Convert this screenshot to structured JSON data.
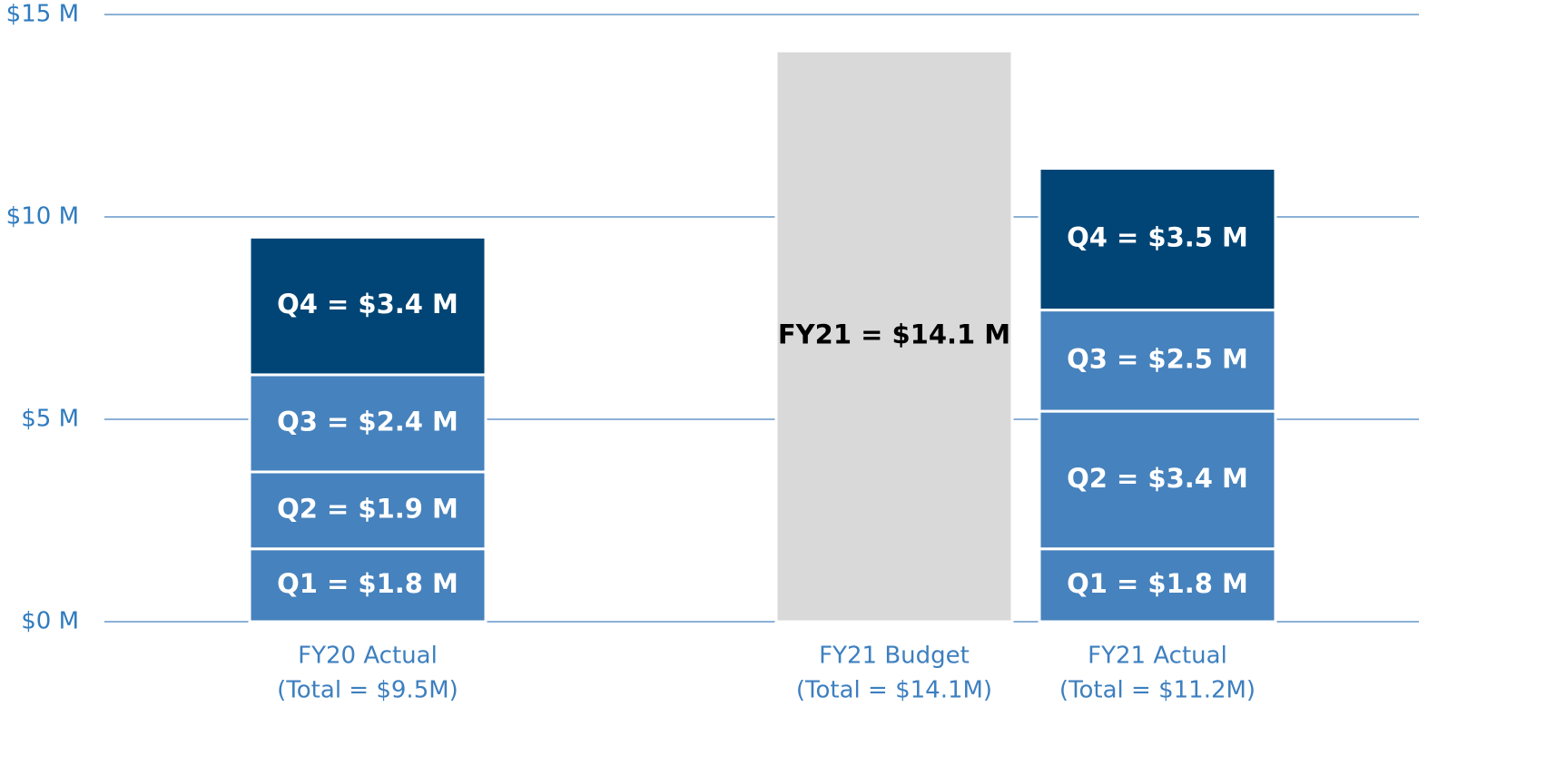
{
  "chart_data": {
    "type": "stacked_bar",
    "categories": [
      "FY20 Actual",
      "FY21 Budget",
      "FY21 Actual"
    ],
    "category_totals": [
      "(Total = $9.5M)",
      "(Total = $14.1M)",
      "(Total = $11.2M)"
    ],
    "series": [
      {
        "name": "Q1",
        "color": "#4682bd",
        "label_color": "#ffffff",
        "values": [
          1.8,
          null,
          1.8
        ],
        "value_labels": [
          "Q1 = $1.8 M",
          null,
          "Q1 = $1.8 M"
        ]
      },
      {
        "name": "Q2",
        "color": "#4682bd",
        "label_color": "#ffffff",
        "values": [
          1.9,
          null,
          3.4
        ],
        "value_labels": [
          "Q2 = $1.9 M",
          null,
          "Q2 = $3.4 M"
        ]
      },
      {
        "name": "Q3",
        "color": "#4682bd",
        "label_color": "#ffffff",
        "values": [
          2.4,
          null,
          2.5
        ],
        "value_labels": [
          "Q3 = $2.4 M",
          null,
          "Q3 = $2.5 M"
        ]
      },
      {
        "name": "Q4",
        "color": "#004576",
        "label_color": "#ffffff",
        "values": [
          3.4,
          null,
          3.5
        ],
        "value_labels": [
          "Q4 = $3.4 M",
          null,
          "Q4 = $3.5 M"
        ]
      },
      {
        "name": "FY21",
        "color": "#d9d9d9",
        "label_color": "#000000",
        "values": [
          null,
          14.1,
          null
        ],
        "value_labels": [
          null,
          "FY21 = $14.1 M",
          null
        ]
      }
    ],
    "ylim": [
      0,
      15
    ],
    "yticks": [
      {
        "value": 0,
        "label": "$0 M"
      },
      {
        "value": 5,
        "label": "$5 M"
      },
      {
        "value": 10,
        "label": "$10 M"
      },
      {
        "value": 15,
        "label": "$15 M"
      }
    ],
    "grid": true
  }
}
